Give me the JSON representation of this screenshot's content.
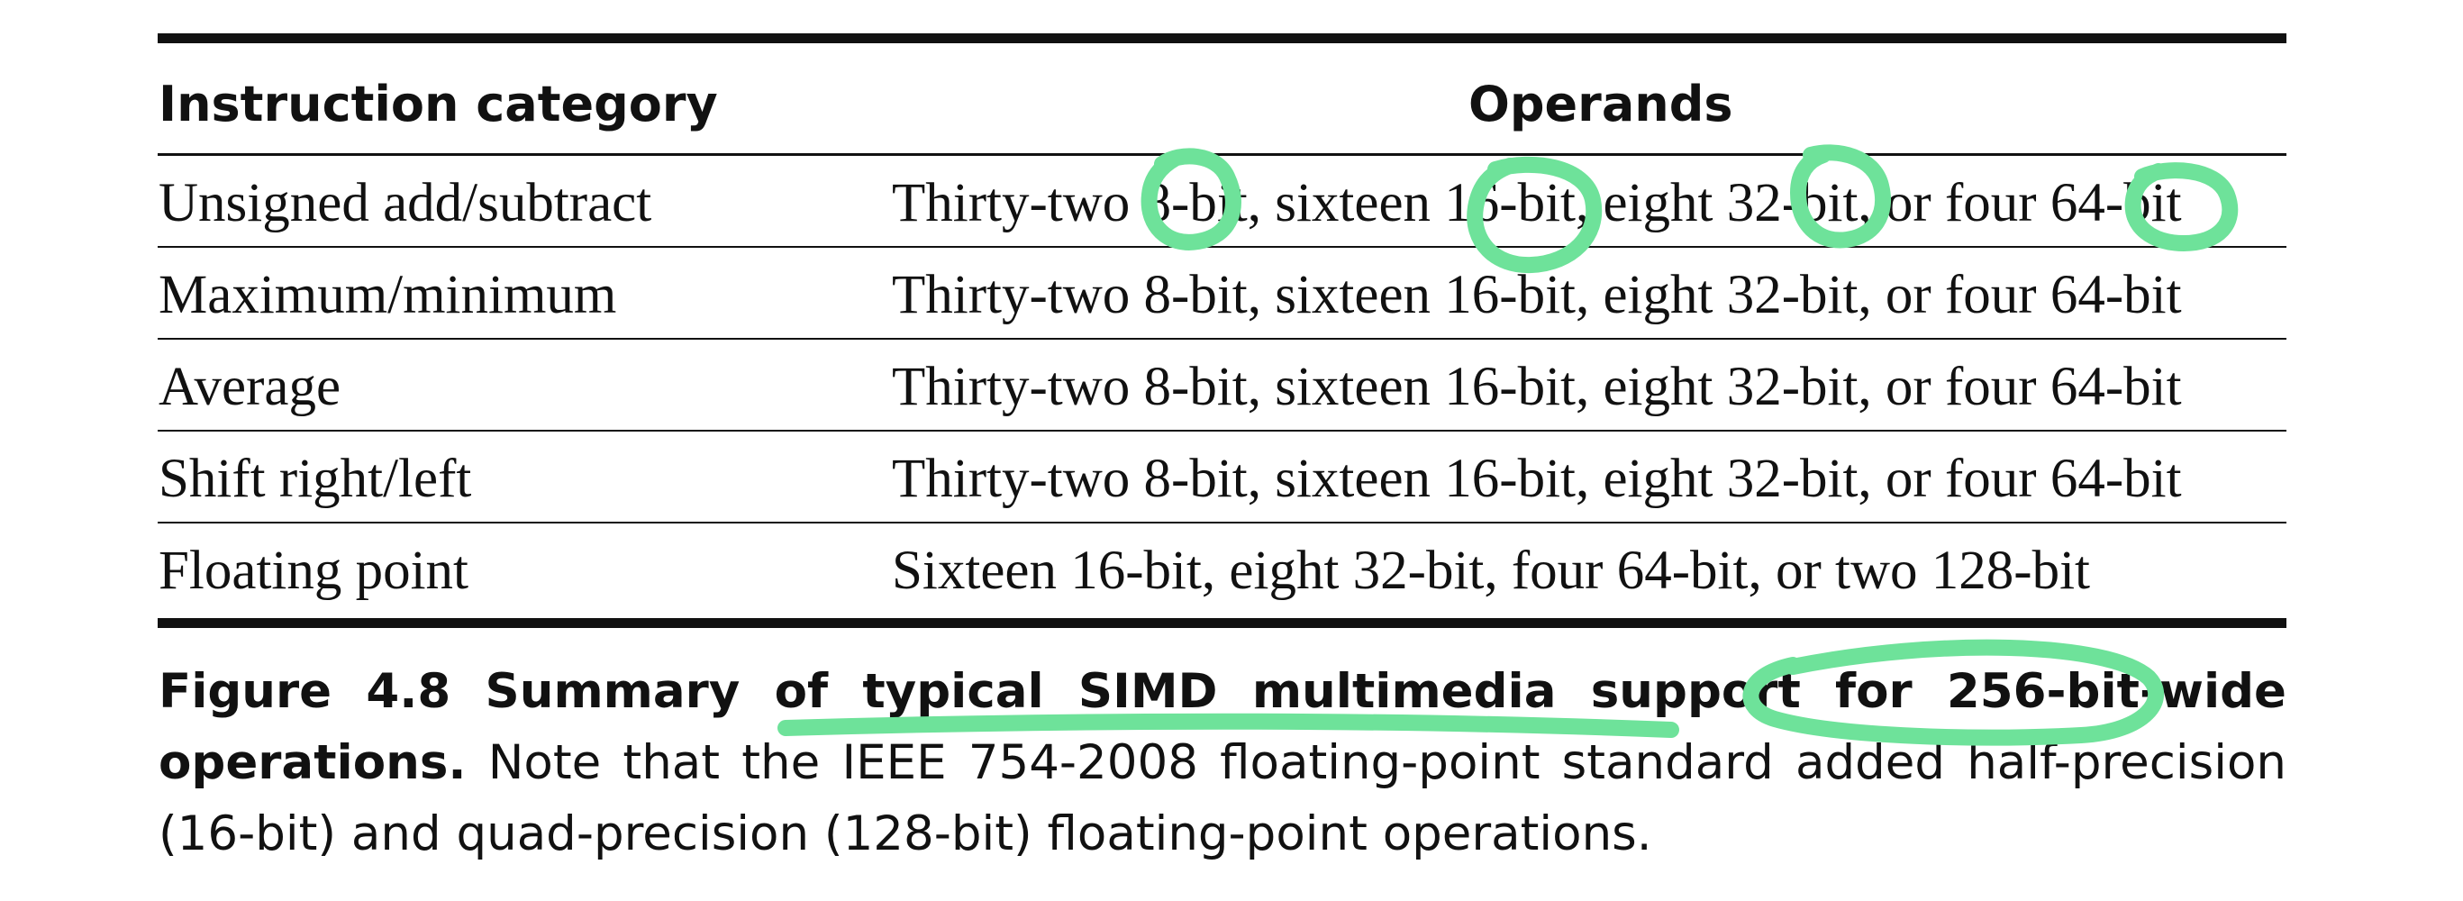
{
  "table": {
    "headers": {
      "category": "Instruction category",
      "operands": "Operands"
    },
    "rows": [
      {
        "category": "Unsigned add/subtract",
        "operands": "Thirty-two 8-bit, sixteen 16-bit, eight 32-bit, or four 64-bit"
      },
      {
        "category": "Maximum/minimum",
        "operands": "Thirty-two 8-bit, sixteen 16-bit, eight 32-bit, or four 64-bit"
      },
      {
        "category": "Average",
        "operands": "Thirty-two 8-bit, sixteen 16-bit, eight 32-bit, or four 64-bit"
      },
      {
        "category": "Shift right/left",
        "operands": "Thirty-two 8-bit, sixteen 16-bit, eight 32-bit, or four 64-bit"
      },
      {
        "category": "Floating point",
        "operands": "Sixteen 16-bit, eight 32-bit, four 64-bit, or two 128-bit"
      }
    ]
  },
  "caption": {
    "bold": "Figure 4.8 Summary of typical SIMD multimedia support for 256-bit-wide operations.",
    "text": " Note that the IEEE 754-2008 floating-point standard added half-precision (16-bit) and quad-precision (128-bit) floating-point operations."
  },
  "annotations": {
    "color": "#6EE29A",
    "circled": [
      "8-",
      "16-",
      "32-",
      "64-",
      "256-bit-wide"
    ],
    "underlined": [
      "typical SIMD multimedia support"
    ]
  }
}
